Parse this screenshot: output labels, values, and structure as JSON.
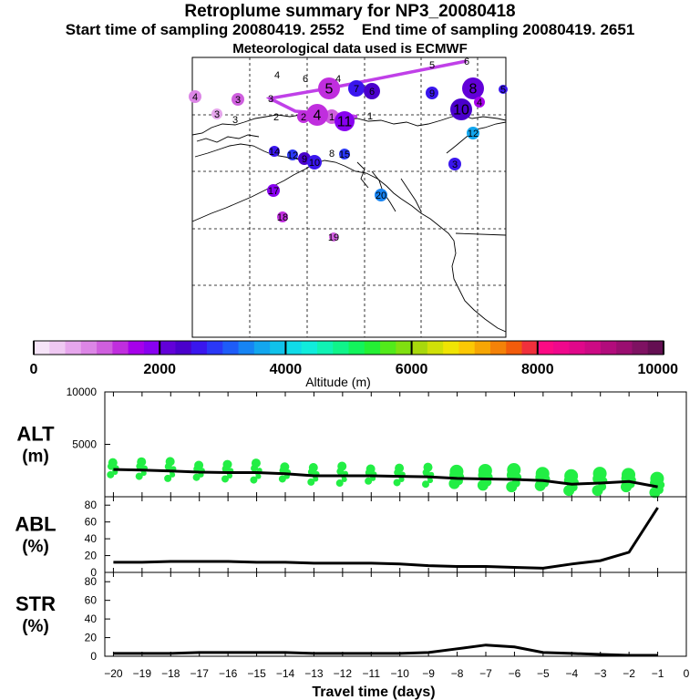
{
  "header": {
    "title": "Retroplume summary for NP3_20080418",
    "start_label": "Start time of sampling 20080419.  2552",
    "end_label": "End time of sampling 20080419.  2651",
    "met_line": "Meteorological data used is ECMWF"
  },
  "colorbar": {
    "colors": [
      "#f6e4f8",
      "#efc8f2",
      "#e6a6ec",
      "#dc86e6",
      "#cf5fde",
      "#c02ede",
      "#a600ea",
      "#8800f0",
      "#6200d8",
      "#4a00cc",
      "#3a16ee",
      "#2a38f6",
      "#1e5cf8",
      "#1684f4",
      "#12a6ee",
      "#10c2ea",
      "#10dbe8",
      "#10ecdc",
      "#10f2b4",
      "#10f48a",
      "#12f45c",
      "#24f034",
      "#52ea1a",
      "#80e010",
      "#a8d80c",
      "#d0e008",
      "#f0e404",
      "#fcc804",
      "#f6a604",
      "#f48208",
      "#f25c0c",
      "#f0303c",
      "#fc0a84",
      "#f0088c",
      "#e0088a",
      "#cc0a84",
      "#b20c7c",
      "#9a0e70",
      "#7e1262",
      "#640f52"
    ],
    "tick_values": [
      0,
      2000,
      4000,
      6000,
      8000,
      10000
    ],
    "tick_labels": [
      "0",
      "2000",
      "4000",
      "6000",
      "8000",
      "10000"
    ],
    "label": "Altitude (m)"
  },
  "map": {
    "markers": [
      {
        "label": "4",
        "color": "#000000"
      },
      {
        "label": "6",
        "color": "#000000"
      },
      {
        "label": "5",
        "color": "#000000"
      },
      {
        "label": "6",
        "color": "#000000"
      },
      {
        "label": "4",
        "color": "#dc86e6"
      },
      {
        "label": "3",
        "color": "#cf5fde"
      },
      {
        "label": "3",
        "color": "#e6a6ec"
      },
      {
        "label": "3",
        "color": "#000000"
      },
      {
        "label": "3",
        "color": "#000000"
      },
      {
        "label": "2",
        "color": "#000000"
      },
      {
        "label": "5",
        "color": "#c02ede"
      },
      {
        "label": "4",
        "color": "#000000"
      },
      {
        "label": "7",
        "color": "#3a16ee"
      },
      {
        "label": "6",
        "color": "#4a00cc"
      },
      {
        "label": "8",
        "color": "#6200d8"
      },
      {
        "label": "1",
        "color": "#cf5fde"
      },
      {
        "label": "4",
        "color": "#c02ede"
      },
      {
        "label": "11",
        "color": "#8800f0"
      },
      {
        "label": "2",
        "color": "#c02ede"
      },
      {
        "label": "1",
        "color": "#000000"
      },
      {
        "label": "9",
        "color": "#3a16ee"
      },
      {
        "label": "5",
        "color": "#3a16ee"
      },
      {
        "label": "10",
        "color": "#4a00cc"
      },
      {
        "label": "4",
        "color": "#a600ea"
      },
      {
        "label": "12",
        "color": "#12a6ee"
      },
      {
        "label": "14",
        "color": "#3a16ee"
      },
      {
        "label": "12",
        "color": "#2a38f6"
      },
      {
        "label": "9",
        "color": "#4a00cc"
      },
      {
        "label": "10",
        "color": "#3a16ee"
      },
      {
        "label": "8",
        "color": "#000000"
      },
      {
        "label": "15",
        "color": "#2a38f6"
      },
      {
        "label": "3",
        "color": "#3a16ee"
      },
      {
        "label": "17",
        "color": "#8800f0"
      },
      {
        "label": "20",
        "color": "#1684f4"
      },
      {
        "label": "18",
        "color": "#c02ede"
      },
      {
        "label": "19",
        "color": "#cf5fde"
      }
    ],
    "trajectory_color": "#c040e8"
  },
  "chart_data": [
    {
      "type": "scatter",
      "panel_label": "ALT",
      "panel_unit": "(m)",
      "ylim": [
        0,
        10000
      ],
      "y_ticks": [
        5000,
        10000
      ],
      "y_tick_labels": [
        "5000",
        "10000"
      ],
      "mean_line": {
        "x": [
          -20,
          -19,
          -18,
          -17,
          -16,
          -15,
          -14,
          -13,
          -12,
          -11,
          -10,
          -9,
          -8,
          -7,
          -6,
          -5,
          -4,
          -3,
          -2,
          -1
        ],
        "y": [
          2600,
          2550,
          2450,
          2350,
          2300,
          2300,
          2200,
          2000,
          2000,
          2000,
          1950,
          1900,
          1750,
          1700,
          1650,
          1550,
          1200,
          1300,
          1450,
          950
        ]
      },
      "dot_color": "#22ee44",
      "clusters_x": [
        -20,
        -19,
        -18,
        -17,
        -16,
        -15,
        -14,
        -13,
        -12,
        -11,
        -10,
        -9,
        -8,
        -7,
        -6,
        -5,
        -4,
        -3,
        -2,
        -1
      ]
    },
    {
      "type": "line",
      "panel_label": "ABL",
      "panel_unit": "(%)",
      "ylim": [
        0,
        90
      ],
      "y_ticks": [
        0,
        20,
        40,
        60,
        80
      ],
      "y_tick_labels": [
        "0",
        "20",
        "40",
        "60",
        "80"
      ],
      "x": [
        -20,
        -19,
        -18,
        -17,
        -16,
        -15,
        -14,
        -13,
        -12,
        -11,
        -10,
        -9,
        -8,
        -7,
        -6,
        -5,
        -4,
        -3,
        -2,
        -1
      ],
      "y": [
        12,
        12,
        13,
        13,
        13,
        12,
        12,
        11,
        11,
        11,
        10,
        8,
        7,
        7,
        6,
        5,
        10,
        14,
        24,
        77
      ]
    },
    {
      "type": "line",
      "panel_label": "STR",
      "panel_unit": "(%)",
      "ylim": [
        0,
        90
      ],
      "y_ticks": [
        0,
        20,
        40,
        60,
        80
      ],
      "y_tick_labels": [
        "0",
        "20",
        "40",
        "60",
        "80"
      ],
      "x": [
        -20,
        -19,
        -18,
        -17,
        -16,
        -15,
        -14,
        -13,
        -12,
        -11,
        -10,
        -9,
        -8,
        -7,
        -6,
        -5,
        -4,
        -3,
        -2,
        -1
      ],
      "y": [
        3,
        3,
        3,
        4,
        4,
        4,
        4,
        3,
        3,
        3,
        3,
        4,
        8,
        12,
        10,
        4,
        3,
        2,
        1,
        1
      ],
      "xlabel": "Travel time (days)",
      "x_ticks": [
        -20,
        -19,
        -18,
        -17,
        -16,
        -15,
        -14,
        -13,
        -12,
        -11,
        -10,
        -9,
        -8,
        -7,
        -6,
        -5,
        -4,
        -3,
        -2,
        -1,
        0
      ],
      "x_tick_labels": [
        "−20",
        "−19",
        "−18",
        "−17",
        "−16",
        "−15",
        "−14",
        "−13",
        "−12",
        "−11",
        "−10",
        "−9",
        "−8",
        "−7",
        "−6",
        "−5",
        "−4",
        "−3",
        "−2",
        "−1",
        "0"
      ]
    }
  ]
}
